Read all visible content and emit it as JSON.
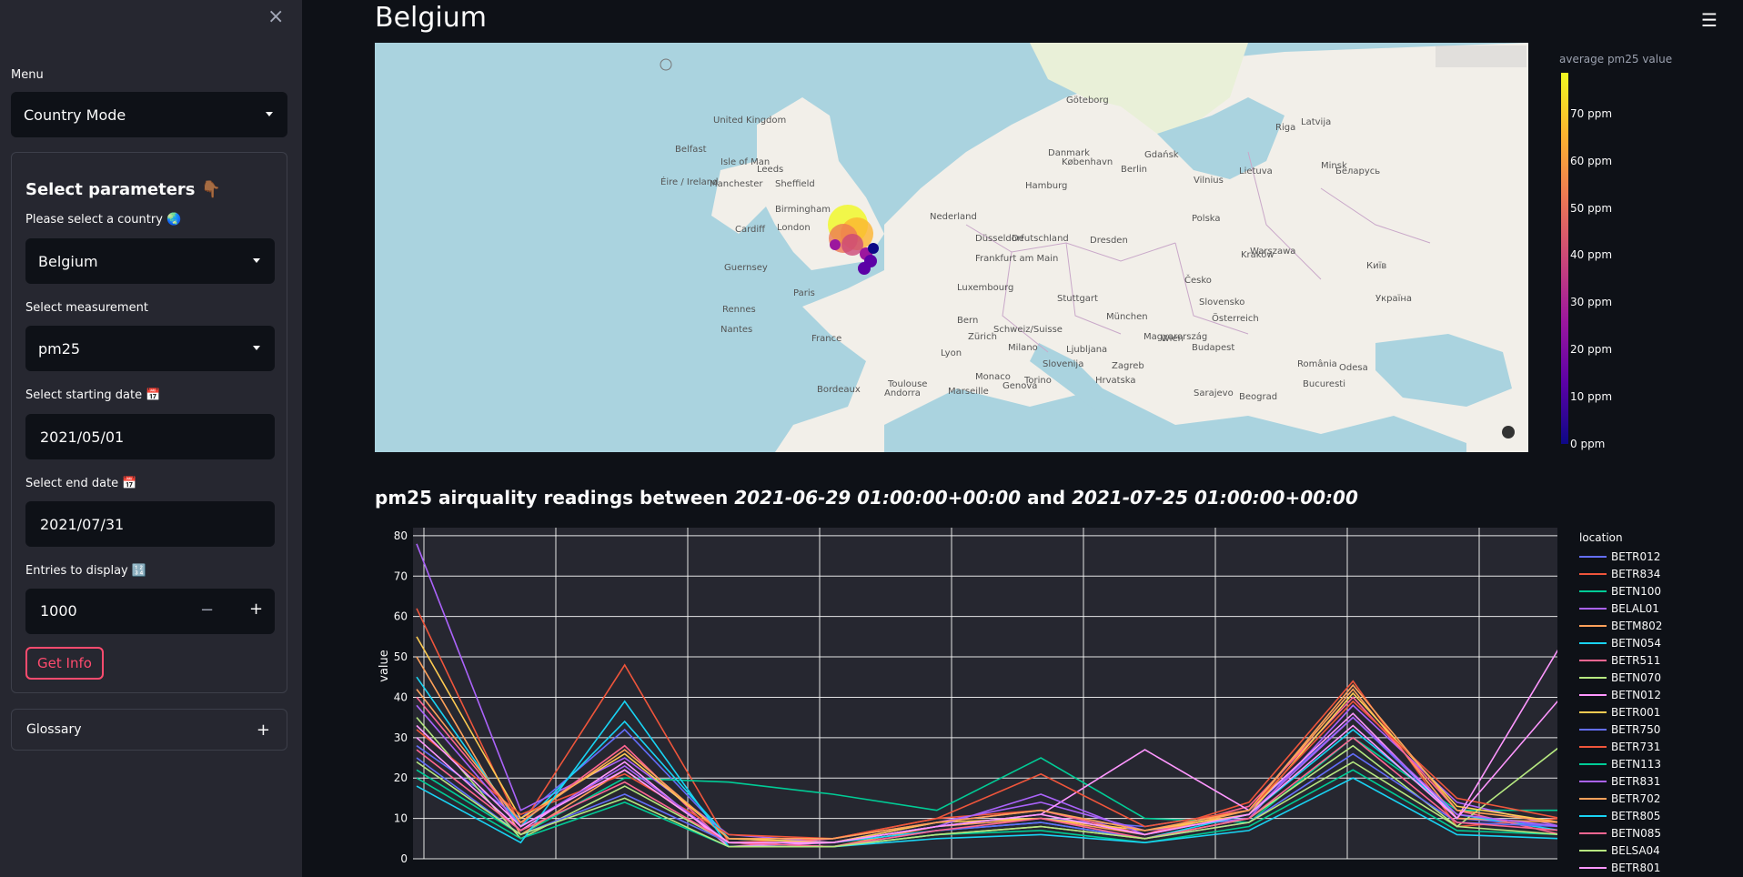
{
  "sidebar": {
    "close_icon": "×",
    "menu_label": "Menu",
    "mode_value": "Country Mode",
    "panel_title": "Select parameters 👇🏾",
    "country_label": "Please select a country 🌏",
    "country_value": "Belgium",
    "measurement_label": "Select measurement",
    "measurement_value": "pm25",
    "start_label": "Select starting date 📅",
    "start_value": "2021/05/01",
    "end_label": "Select end date 📅",
    "end_value": "2021/07/31",
    "entries_label": "Entries to display 🔢",
    "entries_value": "1000",
    "minus": "−",
    "plus": "+",
    "button_label": "Get Info",
    "glossary_label": "Glossary",
    "glossary_plus": "+"
  },
  "header": {
    "hamburger": "☰",
    "title": "Belgium"
  },
  "map": {
    "colorbar_title": "average pm25 value",
    "colorbar_labels": [
      "70 ppm",
      "60 ppm",
      "50 ppm",
      "40 ppm",
      "30 ppm",
      "20 ppm",
      "10 ppm",
      "0 ppm"
    ],
    "labels": [
      "United Kingdom",
      "Belfast",
      "Isle of Man",
      "Éire / Ireland",
      "Manchester",
      "Sheffield",
      "Leeds",
      "Birmingham",
      "Cardiff",
      "London",
      "Guernsey",
      "Rennes",
      "Nantes",
      "Paris",
      "France",
      "Nederland",
      "Düsseldorf",
      "Frankfurt am Main",
      "Luxembourg",
      "Deutschland",
      "Hamburg",
      "Danmark",
      "København",
      "Göteborg",
      "Polska",
      "Warszawa",
      "Česko",
      "Österreich",
      "Schweiz/Suisse",
      "Milano",
      "Slovenija",
      "Hrvatska",
      "Magyarország",
      "Slovensko",
      "Україна",
      "România",
      "Беларусь",
      "Latvija",
      "Lietuva",
      "Kraków",
      "Wien",
      "Genova",
      "Marseille",
      "Monaco",
      "Andorra",
      "Bucuresti",
      "Odesa",
      "Київ",
      "Minsk",
      "Vilnius",
      "Riga",
      "Gdańsk",
      "Berlin",
      "Dresden",
      "Stuttgart",
      "München",
      "Zürich",
      "Torino",
      "Bordeaux",
      "Toulouse",
      "Lyon",
      "Bern",
      "Ljubljana",
      "Zagreb",
      "Budapest",
      "Beograd",
      "Sarajevo"
    ]
  },
  "chart": {
    "title_prefix": "pm25 airquality readings between ",
    "date_start": "2021-06-29 01:00:00+00:00",
    "title_mid": " and ",
    "date_end": "2021-07-25 01:00:00+00:00"
  },
  "chart_data": {
    "type": "line",
    "ylabel": "value",
    "ylim": [
      0,
      82
    ],
    "yticks": [
      0,
      10,
      20,
      30,
      40,
      50,
      60,
      70,
      80
    ],
    "legend_title": "location",
    "grid": true,
    "series": [
      {
        "name": "BETR012",
        "color": "#636efa",
        "values": [
          28,
          10,
          32,
          5,
          4,
          8,
          10,
          8,
          12,
          35,
          10,
          8
        ]
      },
      {
        "name": "BETR834",
        "color": "#ef553b",
        "values": [
          62,
          8,
          48,
          4,
          5,
          10,
          12,
          6,
          14,
          44,
          8,
          10
        ]
      },
      {
        "name": "BETN100",
        "color": "#00cc96",
        "values": [
          22,
          6,
          20,
          19,
          16,
          12,
          25,
          10,
          9,
          30,
          12,
          12
        ]
      },
      {
        "name": "BELAL01",
        "color": "#ab63fa",
        "values": [
          78,
          12,
          25,
          6,
          4,
          9,
          14,
          7,
          10,
          38,
          14,
          8
        ]
      },
      {
        "name": "BETM802",
        "color": "#ffa15a",
        "values": [
          50,
          6,
          22,
          4,
          3,
          8,
          10,
          6,
          12,
          42,
          10,
          9
        ]
      },
      {
        "name": "BETN054",
        "color": "#19d3f3",
        "values": [
          45,
          8,
          34,
          5,
          4,
          7,
          9,
          5,
          11,
          32,
          11,
          7
        ]
      },
      {
        "name": "BETR511",
        "color": "#ff6692",
        "values": [
          40,
          9,
          28,
          3,
          5,
          9,
          12,
          6,
          13,
          40,
          12,
          6
        ]
      },
      {
        "name": "BETN070",
        "color": "#b6e880",
        "values": [
          35,
          5,
          18,
          4,
          3,
          6,
          8,
          5,
          10,
          28,
          8,
          28
        ]
      },
      {
        "name": "BETN012",
        "color": "#ff97ff",
        "values": [
          30,
          7,
          24,
          3,
          4,
          8,
          11,
          27,
          12,
          36,
          10,
          53
        ]
      },
      {
        "name": "BETR001",
        "color": "#fecb52",
        "values": [
          55,
          10,
          26,
          5,
          4,
          9,
          10,
          7,
          11,
          41,
          13,
          9
        ]
      },
      {
        "name": "BETR750",
        "color": "#636efa",
        "values": [
          25,
          6,
          16,
          4,
          3,
          7,
          9,
          5,
          9,
          26,
          9,
          8
        ]
      },
      {
        "name": "BETR731",
        "color": "#ef553b",
        "values": [
          32,
          11,
          21,
          6,
          5,
          10,
          21,
          8,
          12,
          39,
          15,
          10
        ]
      },
      {
        "name": "BETN113",
        "color": "#00cc96",
        "values": [
          20,
          5,
          14,
          3,
          3,
          6,
          7,
          4,
          8,
          22,
          7,
          6
        ]
      },
      {
        "name": "BETR831",
        "color": "#ab63fa",
        "values": [
          38,
          8,
          23,
          4,
          4,
          8,
          16,
          6,
          11,
          35,
          11,
          8
        ]
      },
      {
        "name": "BETR702",
        "color": "#ffa15a",
        "values": [
          42,
          9,
          27,
          5,
          5,
          9,
          12,
          7,
          12,
          43,
          12,
          9
        ]
      },
      {
        "name": "BETR805",
        "color": "#19d3f3",
        "values": [
          18,
          4,
          39,
          3,
          3,
          5,
          6,
          4,
          7,
          20,
          6,
          5
        ]
      },
      {
        "name": "BETN085",
        "color": "#ff6692",
        "values": [
          27,
          7,
          19,
          4,
          3,
          7,
          10,
          5,
          10,
          30,
          9,
          7
        ]
      },
      {
        "name": "BELSA04",
        "color": "#b6e880",
        "values": [
          24,
          6,
          15,
          3,
          3,
          6,
          8,
          5,
          9,
          24,
          8,
          6
        ]
      },
      {
        "name": "BETR801",
        "color": "#ff97ff",
        "values": [
          33,
          8,
          22,
          4,
          4,
          8,
          11,
          6,
          11,
          33,
          10,
          40
        ]
      }
    ]
  }
}
